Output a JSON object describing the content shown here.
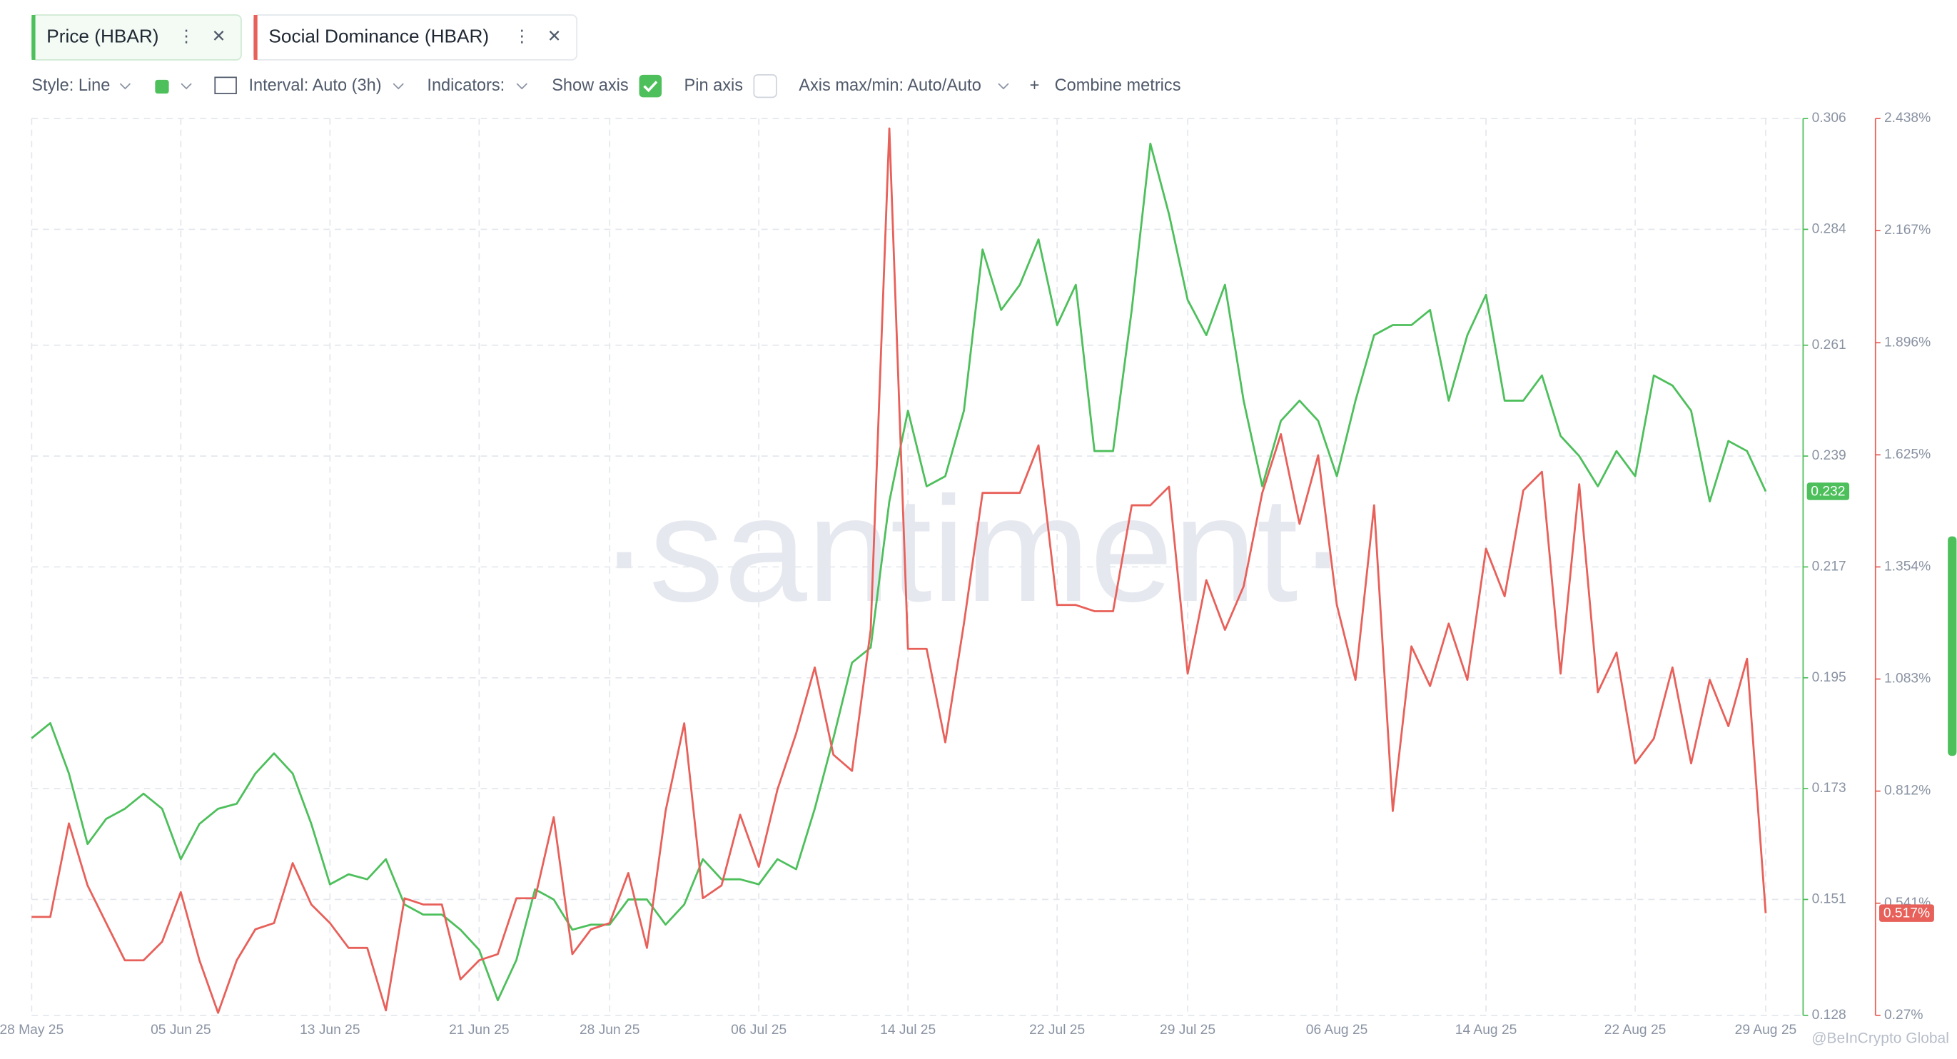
{
  "tabs": [
    "Price (HBAR)",
    "Social Dominance (HBAR)"
  ],
  "toolbar": {
    "style": "Style: Line",
    "interval": "Interval: Auto (3h)",
    "indicators": "Indicators:",
    "show_axis": "Show axis",
    "pin_axis": "Pin axis",
    "axis_maxmin": "Axis max/min: Auto/Auto",
    "combine": "Combine metrics"
  },
  "watermark": "·santiment·",
  "credit": "@BeInCrypto Global",
  "chart_data": {
    "type": "line",
    "x": [
      "2025-05-28",
      "2025-05-29",
      "2025-05-30",
      "2025-05-31",
      "2025-06-01",
      "2025-06-02",
      "2025-06-03",
      "2025-06-04",
      "2025-06-05",
      "2025-06-06",
      "2025-06-07",
      "2025-06-08",
      "2025-06-09",
      "2025-06-10",
      "2025-06-11",
      "2025-06-12",
      "2025-06-13",
      "2025-06-14",
      "2025-06-15",
      "2025-06-16",
      "2025-06-17",
      "2025-06-18",
      "2025-06-19",
      "2025-06-20",
      "2025-06-21",
      "2025-06-22",
      "2025-06-23",
      "2025-06-24",
      "2025-06-25",
      "2025-06-26",
      "2025-06-27",
      "2025-06-28",
      "2025-06-29",
      "2025-06-30",
      "2025-07-01",
      "2025-07-02",
      "2025-07-03",
      "2025-07-04",
      "2025-07-05",
      "2025-07-06",
      "2025-07-07",
      "2025-07-08",
      "2025-07-09",
      "2025-07-10",
      "2025-07-11",
      "2025-07-12",
      "2025-07-13",
      "2025-07-14",
      "2025-07-15",
      "2025-07-16",
      "2025-07-17",
      "2025-07-18",
      "2025-07-19",
      "2025-07-20",
      "2025-07-21",
      "2025-07-22",
      "2025-07-23",
      "2025-07-24",
      "2025-07-25",
      "2025-07-26",
      "2025-07-27",
      "2025-07-28",
      "2025-07-29",
      "2025-07-30",
      "2025-07-31",
      "2025-08-01",
      "2025-08-02",
      "2025-08-03",
      "2025-08-04",
      "2025-08-05",
      "2025-08-06",
      "2025-08-07",
      "2025-08-08",
      "2025-08-09",
      "2025-08-10",
      "2025-08-11",
      "2025-08-12",
      "2025-08-13",
      "2025-08-14",
      "2025-08-15",
      "2025-08-16",
      "2025-08-17",
      "2025-08-18",
      "2025-08-19",
      "2025-08-20",
      "2025-08-21",
      "2025-08-22",
      "2025-08-23",
      "2025-08-24",
      "2025-08-25",
      "2025-08-26",
      "2025-08-27",
      "2025-08-28",
      "2025-08-29"
    ],
    "xlim": [
      "2025-05-28",
      "2025-08-29"
    ],
    "xticks": [
      {
        "value": "2025-05-28",
        "label": "28 May 25"
      },
      {
        "value": "2025-06-05",
        "label": "05 Jun 25"
      },
      {
        "value": "2025-06-13",
        "label": "13 Jun 25"
      },
      {
        "value": "2025-06-21",
        "label": "21 Jun 25"
      },
      {
        "value": "2025-06-28",
        "label": "28 Jun 25"
      },
      {
        "value": "2025-07-06",
        "label": "06 Jul 25"
      },
      {
        "value": "2025-07-14",
        "label": "14 Jul 25"
      },
      {
        "value": "2025-07-22",
        "label": "22 Jul 25"
      },
      {
        "value": "2025-07-29",
        "label": "29 Jul 25"
      },
      {
        "value": "2025-08-06",
        "label": "06 Aug 25"
      },
      {
        "value": "2025-08-14",
        "label": "14 Aug 25"
      },
      {
        "value": "2025-08-22",
        "label": "22 Aug 25"
      },
      {
        "value": "2025-08-29",
        "label": "29 Aug 25"
      }
    ],
    "ylim": [
      0.128,
      0.306
    ],
    "yticks": [
      0.128,
      0.151,
      0.173,
      0.195,
      0.217,
      0.239,
      0.261,
      0.284,
      0.306
    ],
    "y2lim": [
      0.27,
      2.438
    ],
    "y2ticks": [
      {
        "value": 0.27,
        "label": "0.27%"
      },
      {
        "value": 0.541,
        "label": "0.541%"
      },
      {
        "value": 0.812,
        "label": "0.812%"
      },
      {
        "value": 1.083,
        "label": "1.083%"
      },
      {
        "value": 1.354,
        "label": "1.354%"
      },
      {
        "value": 1.625,
        "label": "1.625%"
      },
      {
        "value": 1.896,
        "label": "1.896%"
      },
      {
        "value": 2.167,
        "label": "2.167%"
      },
      {
        "value": 2.438,
        "label": "2.438%"
      }
    ],
    "grid": true,
    "series": [
      {
        "name": "Price (HBAR)",
        "color": "#4dbf5b",
        "axis": "y",
        "last_value_label": "0.232",
        "values": [
          0.183,
          0.186,
          0.176,
          0.162,
          0.167,
          0.169,
          0.172,
          0.169,
          0.159,
          0.166,
          0.169,
          0.17,
          0.176,
          0.18,
          0.176,
          0.166,
          0.154,
          0.156,
          0.155,
          0.159,
          0.15,
          0.148,
          0.148,
          0.145,
          0.141,
          0.131,
          0.139,
          0.153,
          0.151,
          0.145,
          0.146,
          0.146,
          0.151,
          0.151,
          0.146,
          0.15,
          0.159,
          0.155,
          0.155,
          0.154,
          0.159,
          0.157,
          0.169,
          0.183,
          0.198,
          0.201,
          0.23,
          0.248,
          0.233,
          0.235,
          0.248,
          0.28,
          0.268,
          0.273,
          0.282,
          0.265,
          0.273,
          0.24,
          0.24,
          0.268,
          0.301,
          0.287,
          0.27,
          0.263,
          0.273,
          0.25,
          0.233,
          0.246,
          0.25,
          0.246,
          0.235,
          0.25,
          0.263,
          0.265,
          0.265,
          0.268,
          0.25,
          0.263,
          0.271,
          0.25,
          0.25,
          0.255,
          0.243,
          0.239,
          0.233,
          0.24,
          0.235,
          0.255,
          0.253,
          0.248,
          0.23,
          0.242,
          0.24,
          0.232
        ]
      },
      {
        "name": "Social Dominance (HBAR)",
        "color": "#e8605a",
        "axis": "y2",
        "last_value_label": "0.517%",
        "values": [
          0.508,
          0.508,
          0.734,
          0.584,
          0.493,
          0.403,
          0.403,
          0.448,
          0.568,
          0.403,
          0.276,
          0.403,
          0.478,
          0.493,
          0.638,
          0.538,
          0.493,
          0.433,
          0.433,
          0.282,
          0.553,
          0.538,
          0.538,
          0.357,
          0.403,
          0.418,
          0.553,
          0.553,
          0.749,
          0.418,
          0.478,
          0.493,
          0.614,
          0.433,
          0.764,
          0.976,
          0.553,
          0.584,
          0.755,
          0.629,
          0.816,
          0.951,
          1.111,
          0.9,
          0.861,
          1.202,
          2.414,
          1.156,
          1.156,
          0.93,
          1.217,
          1.533,
          1.533,
          1.533,
          1.648,
          1.262,
          1.262,
          1.247,
          1.247,
          1.503,
          1.503,
          1.548,
          1.096,
          1.322,
          1.202,
          1.307,
          1.533,
          1.675,
          1.458,
          1.624,
          1.262,
          1.081,
          1.503,
          0.764,
          1.162,
          1.066,
          1.217,
          1.081,
          1.398,
          1.283,
          1.539,
          1.584,
          1.096,
          1.554,
          1.051,
          1.147,
          0.879,
          0.939,
          1.111,
          0.879,
          1.081,
          0.969,
          1.132,
          0.517
        ]
      }
    ]
  }
}
